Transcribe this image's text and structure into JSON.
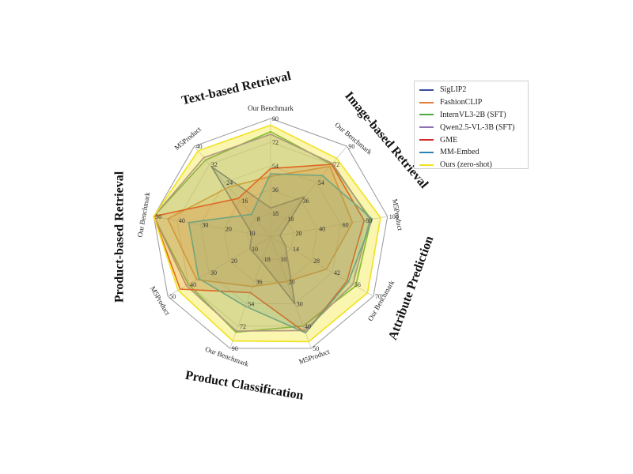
{
  "chart_data": {
    "type": "radar",
    "group_labels": [
      "Image-based Retrieval",
      "Attribute Prediction",
      "Product Classification",
      "Product-based Retrieval",
      "Text-based Retrieval"
    ],
    "axes": [
      {
        "label": "Our Benchmark",
        "max": 90,
        "ticks": [
          "18",
          "36",
          "54",
          "72",
          "90"
        ]
      },
      {
        "label": "Our Benchmark",
        "max": 90,
        "ticks": [
          "18",
          "36",
          "54",
          "72",
          "90"
        ]
      },
      {
        "label": "M5Product",
        "max": 100,
        "ticks": [
          "20",
          "40",
          "60",
          "80",
          "100"
        ]
      },
      {
        "label": "Our Benchmark",
        "max": 70,
        "ticks": [
          "14",
          "28",
          "42",
          "56",
          "70"
        ]
      },
      {
        "label": "M5Product",
        "max": 50,
        "ticks": [
          "10",
          "20",
          "30",
          "40",
          "50"
        ]
      },
      {
        "label": "Our Benchmark",
        "max": 90,
        "ticks": [
          "18",
          "36",
          "54",
          "72",
          "90"
        ]
      },
      {
        "label": "M5Product",
        "max": 50,
        "ticks": [
          "10",
          "20",
          "30",
          "40",
          "50"
        ]
      },
      {
        "label": "Our Benchmark",
        "max": 50,
        "ticks": [
          "10",
          "20",
          "30",
          "40",
          "50"
        ]
      },
      {
        "label": "M5Product",
        "max": 40,
        "ticks": [
          "8",
          "16",
          "24",
          "32",
          "40"
        ]
      }
    ],
    "series": [
      {
        "name": "SigLIP2",
        "color": "#3a4ea0",
        "values": [
          22,
          40,
          8,
          10,
          30,
          20,
          10,
          8,
          31
        ]
      },
      {
        "name": "FashionCLIP",
        "color": "#e07b39",
        "values": [
          46,
          70,
          70,
          38,
          20,
          40,
          36,
          44,
          22
        ]
      },
      {
        "name": "InternVL3-2B (SFT)",
        "color": "#4caa3c",
        "values": [
          80,
          72,
          86,
          58,
          40,
          77,
          40,
          50,
          34
        ]
      },
      {
        "name": "Qwen2.5-VL-3B (SFT)",
        "color": "#8e6fb5",
        "values": [
          78,
          73,
          85,
          56,
          42,
          76,
          41,
          50,
          35
        ]
      },
      {
        "name": "GME",
        "color": "#d62728",
        "values": [
          52,
          72,
          80,
          52,
          43,
          45,
          44,
          50,
          17
        ]
      },
      {
        "name": "MM-Embed",
        "color": "#2d83b4",
        "values": [
          48,
          61,
          87,
          53,
          43,
          56,
          35,
          35,
          10
        ]
      },
      {
        "name": "Ours (zero-shot)",
        "color": "#f2e21b",
        "values": [
          85,
          78,
          94,
          66,
          47,
          84,
          45,
          50,
          38
        ]
      }
    ]
  }
}
